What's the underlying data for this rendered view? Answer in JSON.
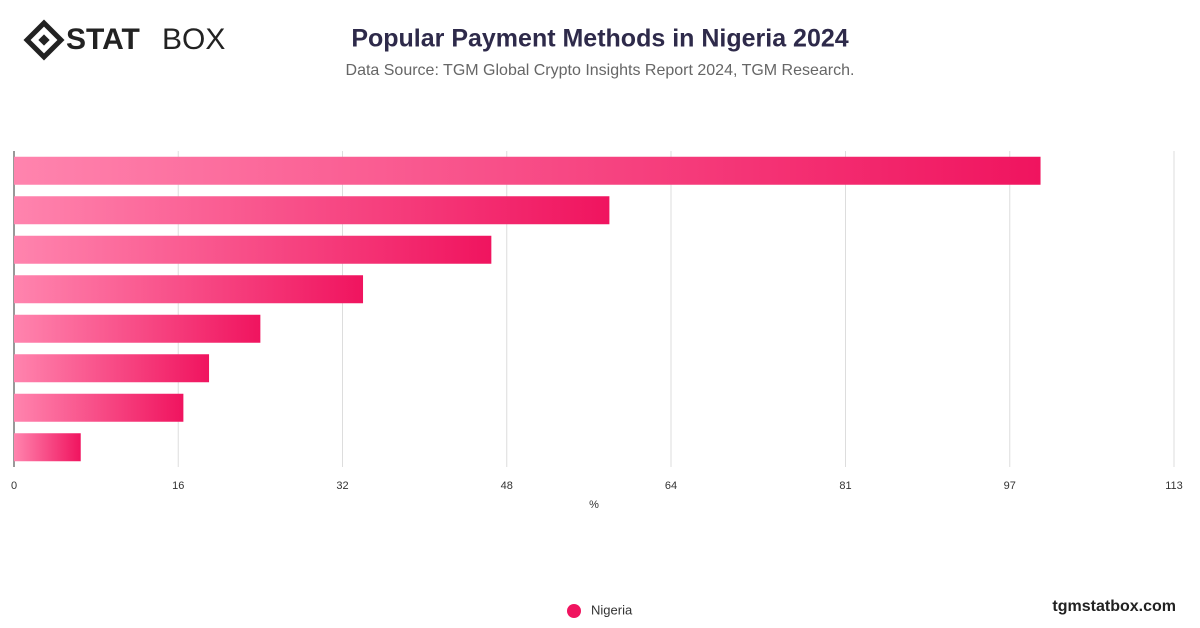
{
  "brand": {
    "bold": "STAT",
    "light": "BOX"
  },
  "footer": "tgmstatbox.com",
  "chart_data": {
    "type": "bar",
    "orientation": "horizontal",
    "title": "Popular Payment Methods in Nigeria 2024",
    "subtitle": "Data Source: TGM Global Crypto Insights Report 2024, TGM Research.",
    "x_label": "%",
    "categories": [
      null,
      null,
      null,
      null,
      null,
      null,
      null,
      null
    ],
    "series": [
      {
        "name": "Nigeria",
        "color": "#f0145f",
        "values": [
          100,
          58,
          46.5,
          34,
          24,
          19,
          16.5,
          6.5
        ]
      }
    ],
    "xlim": [
      0,
      113
    ],
    "xticks": [
      0,
      16,
      32,
      48,
      64,
      81,
      97,
      113
    ],
    "grid": true,
    "legend": "bottom"
  }
}
